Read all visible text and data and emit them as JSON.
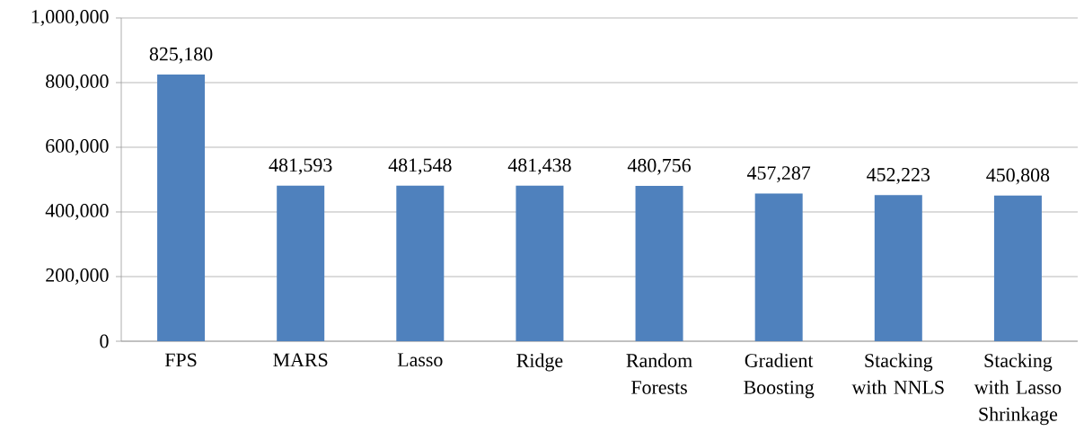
{
  "chart_data": {
    "type": "bar",
    "categories": [
      "FPS",
      "MARS",
      "Lasso",
      "Ridge",
      "Random Forests",
      "Gradient Boosting",
      "Stacking with NNLS",
      "Stacking with Lasso Shrinkage"
    ],
    "values": [
      825180,
      481593,
      481548,
      481438,
      480756,
      457287,
      452223,
      450808
    ],
    "value_labels": [
      "825,180",
      "481,593",
      "481,548",
      "481,438",
      "480,756",
      "457,287",
      "452,223",
      "450,808"
    ],
    "color": "#4f81bd",
    "ylim": [
      0,
      1000000
    ],
    "yticks": [
      {
        "value": 0,
        "label": "0"
      },
      {
        "value": 200000,
        "label": "200,000"
      },
      {
        "value": 400000,
        "label": "400,000"
      },
      {
        "value": 600000,
        "label": "600,000"
      },
      {
        "value": 800000,
        "label": "800,000"
      },
      {
        "value": 1000000,
        "label": "1,000,000"
      }
    ],
    "grid": "y"
  }
}
